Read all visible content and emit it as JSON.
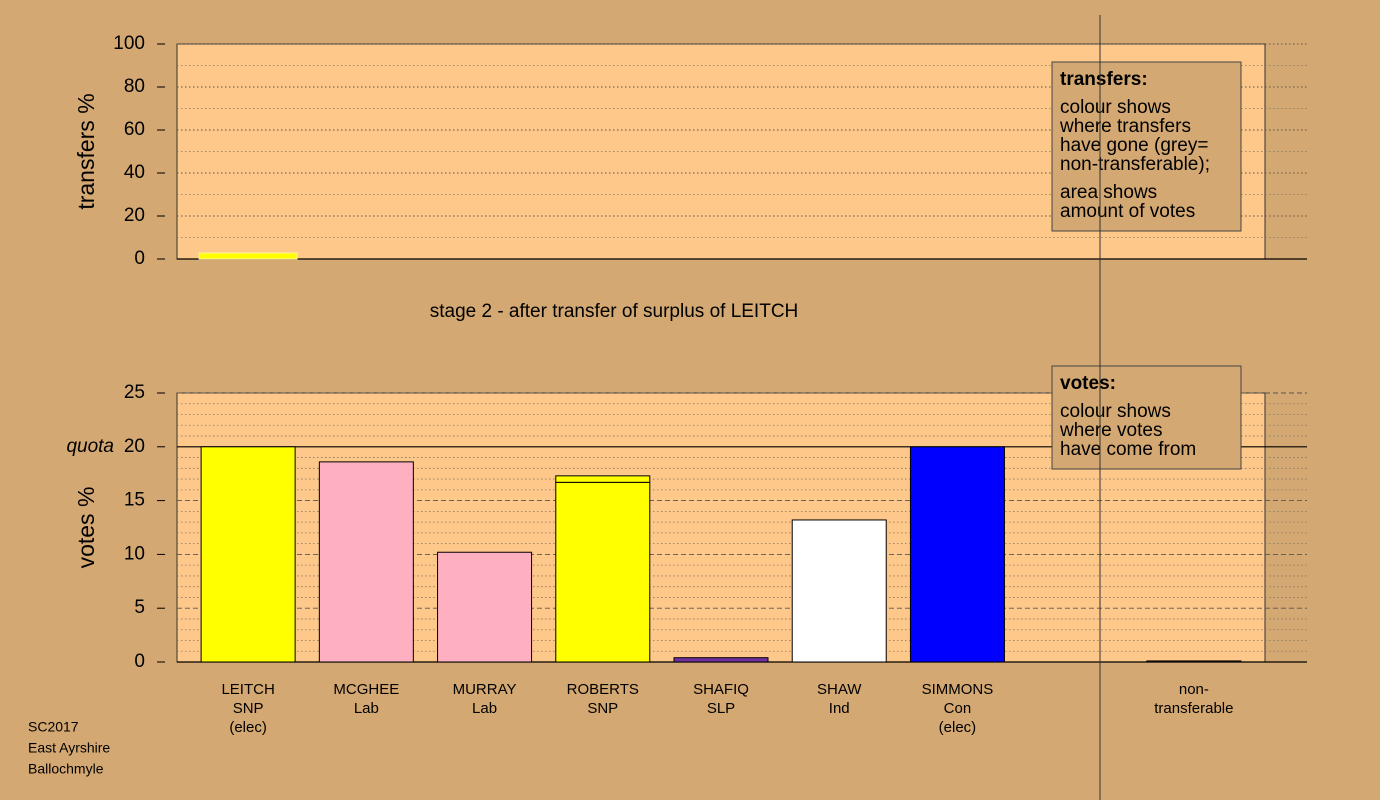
{
  "chart_data": [
    {
      "type": "bar",
      "ylabel": "transfers %",
      "categories": [
        [
          "LEITCH",
          "SNP",
          "(elec)"
        ],
        [
          "MCGHEE",
          "Lab"
        ],
        [
          "MURRAY",
          "Lab"
        ],
        [
          "ROBERTS",
          "SNP"
        ],
        [
          "SHAFIQ",
          "SLP"
        ],
        [
          "SHAW",
          "Ind"
        ],
        [
          "SIMMONS",
          "Con",
          "(elec)"
        ],
        null,
        [
          "non-",
          "transferable"
        ]
      ],
      "values": [
        2.8,
        null,
        null,
        null,
        null,
        null,
        null,
        null,
        null
      ],
      "color": "#ffff00",
      "ylim": [
        0,
        100
      ],
      "yticks": [
        0,
        20,
        40,
        60,
        80,
        100
      ],
      "minor_yticks": [
        10,
        30,
        50,
        70,
        90
      ],
      "grid": true,
      "legend": {
        "title": "transfers:",
        "lines": [
          [
            "colour shows",
            "where transfers",
            "have gone (grey=",
            "non-transferable);"
          ],
          [
            "area shows",
            "amount of votes"
          ]
        ]
      }
    },
    {
      "type": "stacked_bar",
      "title": "stage 2 - after transfer of surplus of LEITCH",
      "ylabel": "votes %",
      "categories": [
        [
          "LEITCH",
          "SNP",
          "(elec)"
        ],
        [
          "MCGHEE",
          "Lab"
        ],
        [
          "MURRAY",
          "Lab"
        ],
        [
          "ROBERTS",
          "SNP"
        ],
        [
          "SHAFIQ",
          "SLP"
        ],
        [
          "SHAW",
          "Ind"
        ],
        [
          "SIMMONS",
          "Con",
          "(elec)"
        ],
        null,
        [
          "non-",
          "transferable"
        ]
      ],
      "series": [
        {
          "colors": [
            "#ffff00",
            "#ffb0c0",
            "#ffb0c0",
            "#ffff00",
            "#7030a0",
            "#ffffff",
            "#0000ff",
            null,
            "#a0a0a0"
          ],
          "values": [
            20,
            18.6,
            10.2,
            16.7,
            0.4,
            13.2,
            20,
            null,
            0.1
          ]
        },
        {
          "color": "#ffff00",
          "values": [
            null,
            null,
            null,
            0.6,
            null,
            null,
            null,
            null,
            null
          ]
        }
      ],
      "ylim": [
        0,
        25
      ],
      "yticks": [
        0,
        5,
        10,
        15,
        20,
        25
      ],
      "minor_yticks": [
        1,
        2,
        3,
        4,
        6,
        7,
        8,
        9,
        11,
        12,
        13,
        14,
        16,
        17,
        18,
        19,
        21,
        22,
        23,
        24
      ],
      "grid": true,
      "quota": {
        "value": 20,
        "label": "quota"
      },
      "legend": {
        "title": "votes:",
        "lines": [
          [
            "colour shows",
            "where votes",
            "have come from"
          ]
        ]
      }
    }
  ],
  "footer": [
    "SC2017",
    "East Ayrshire",
    "Ballochmyle"
  ]
}
